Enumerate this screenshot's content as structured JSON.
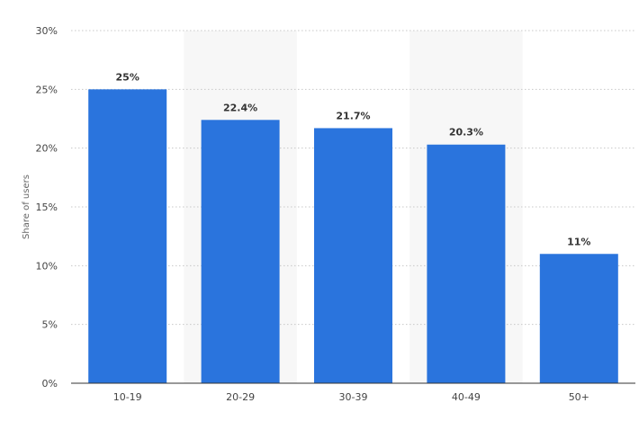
{
  "chart_data": {
    "type": "bar",
    "categories": [
      "10-19",
      "20-29",
      "30-39",
      "40-49",
      "50+"
    ],
    "values": [
      25,
      22.4,
      21.7,
      20.3,
      11
    ],
    "data_labels": [
      "25%",
      "22.4%",
      "21.7%",
      "20.3%",
      "11%"
    ],
    "ylabel": "Share of users",
    "ylim": [
      0,
      30
    ],
    "yticks": [
      0,
      5,
      10,
      15,
      20,
      25,
      30
    ],
    "ytick_labels": [
      "0%",
      "5%",
      "10%",
      "15%",
      "20%",
      "25%",
      "30%"
    ],
    "grid": true,
    "legend": "none",
    "bar_color": "#2a74dd",
    "band_color": "#f7f7f7",
    "grid_color": "#c8c8c8"
  }
}
